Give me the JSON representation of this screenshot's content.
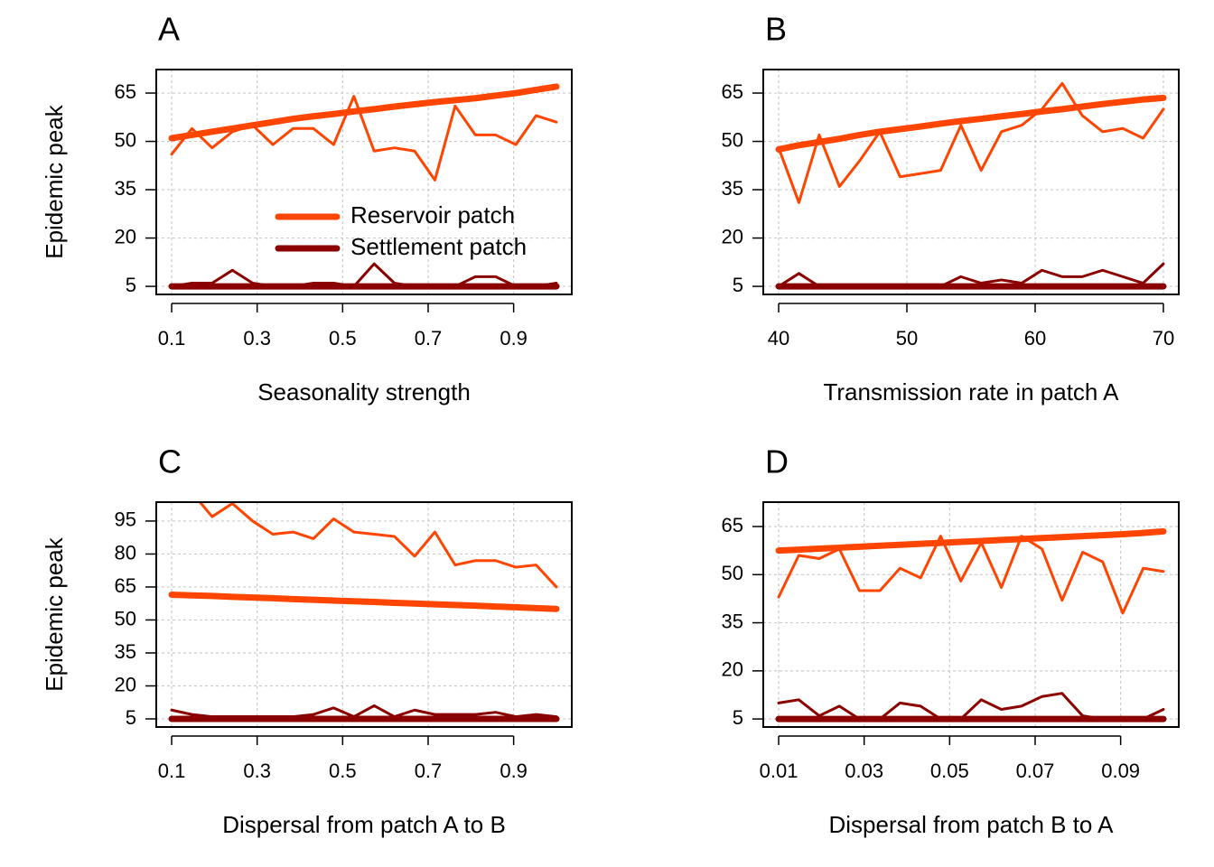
{
  "chart_data": [
    {
      "type": "line",
      "title": "A",
      "xlabel": "Seasonality strength",
      "ylabel": "Epidemic peak",
      "x": [
        0.1,
        0.1474,
        0.1947,
        0.2421,
        0.2895,
        0.3368,
        0.3842,
        0.4316,
        0.4789,
        0.5263,
        0.5737,
        0.6211,
        0.6684,
        0.7158,
        0.7632,
        0.8105,
        0.8579,
        0.9053,
        0.9526,
        1.0
      ],
      "series": [
        {
          "color": "#ff4500",
          "linewidth": 3,
          "values": [
            46,
            54,
            48,
            53,
            55,
            49,
            54,
            54,
            49,
            64,
            47,
            48,
            47,
            38,
            61,
            52,
            52,
            49,
            58,
            56
          ]
        },
        {
          "color": "#8b0000",
          "linewidth": 3,
          "values": [
            5,
            6,
            6,
            10,
            6,
            5,
            5,
            6,
            6,
            5,
            12,
            6,
            5,
            5,
            5,
            8,
            8,
            5,
            5,
            6
          ]
        },
        {
          "name": "Reservoir patch",
          "color": "#ff4500",
          "linewidth": 7,
          "values": [
            51,
            52,
            53,
            54,
            55,
            56,
            57,
            57.8,
            58.5,
            59.3,
            60,
            60.8,
            61.5,
            62.2,
            62.8,
            63.4,
            64.2,
            65,
            66,
            67
          ]
        },
        {
          "name": "Settlement patch",
          "color": "#8b0000",
          "linewidth": 7,
          "values": [
            5,
            5,
            5,
            5,
            5,
            5,
            5,
            5,
            5,
            5,
            5,
            5,
            5,
            5,
            5,
            5,
            5,
            5,
            5,
            5
          ]
        }
      ],
      "xlim": [
        0.064,
        1.036
      ],
      "ylim": [
        2.5,
        72.3
      ],
      "xticks": [
        0.1,
        0.3,
        0.5,
        0.7,
        0.9
      ],
      "yticks": [
        5,
        20,
        35,
        50,
        65
      ],
      "grid": true,
      "legend": "right"
    },
    {
      "type": "line",
      "title": "B",
      "xlabel": "Transmission rate in patch A",
      "x": [
        40,
        41.58,
        43.16,
        44.74,
        46.32,
        47.89,
        49.47,
        51.05,
        52.63,
        54.21,
        55.79,
        57.37,
        58.95,
        60.53,
        62.11,
        63.68,
        65.26,
        66.84,
        68.42,
        70
      ],
      "series": [
        {
          "color": "#ff4500",
          "linewidth": 3,
          "values": [
            48,
            31,
            52,
            36,
            44,
            53,
            39,
            40,
            41,
            55,
            41,
            53,
            55,
            60,
            68,
            58,
            53,
            54,
            51,
            60
          ]
        },
        {
          "color": "#8b0000",
          "linewidth": 3,
          "values": [
            5,
            9,
            5,
            5,
            5,
            5,
            5,
            5,
            5,
            8,
            6,
            7,
            6,
            10,
            8,
            8,
            10,
            8,
            6,
            12
          ]
        },
        {
          "color": "#ff4500",
          "linewidth": 7,
          "values": [
            47.5,
            48.8,
            49.8,
            50.8,
            52,
            53,
            53.8,
            54.6,
            55.5,
            56.3,
            57,
            57.8,
            58.5,
            59.3,
            60,
            60.8,
            61.6,
            62.3,
            63,
            63.5
          ]
        },
        {
          "color": "#8b0000",
          "linewidth": 7,
          "values": [
            5,
            5,
            5,
            5,
            5,
            5,
            5,
            5,
            5,
            5,
            5,
            5,
            5,
            5,
            5,
            5,
            5,
            5,
            5,
            5
          ]
        }
      ],
      "xlim": [
        38.8,
        71.2
      ],
      "ylim": [
        2.5,
        72.3
      ],
      "xticks": [
        40,
        50,
        60,
        70
      ],
      "yticks": [
        5,
        20,
        35,
        50,
        65
      ],
      "grid": true
    },
    {
      "type": "line",
      "title": "C",
      "xlabel": "Dispersal from patch A to B",
      "ylabel": "Epidemic peak",
      "x": [
        0.1,
        0.1474,
        0.1947,
        0.2421,
        0.2895,
        0.3368,
        0.3842,
        0.4316,
        0.4789,
        0.5263,
        0.5737,
        0.6211,
        0.6684,
        0.7158,
        0.7632,
        0.8105,
        0.8579,
        0.9053,
        0.9526,
        1.0
      ],
      "series": [
        {
          "color": "#ff4500",
          "linewidth": 3,
          "values": [
            112,
            108,
            97,
            103,
            95,
            89,
            90,
            87,
            96,
            90,
            89,
            88,
            79,
            90,
            75,
            77,
            77,
            74,
            75,
            65
          ]
        },
        {
          "color": "#8b0000",
          "linewidth": 3,
          "values": [
            9,
            7,
            6,
            6,
            6,
            6,
            6,
            7,
            10,
            6,
            11,
            6,
            9,
            7,
            7,
            7,
            8,
            6,
            7,
            6
          ]
        },
        {
          "color": "#ff4500",
          "linewidth": 7,
          "values": [
            61.5,
            61.2,
            60.9,
            60.5,
            60.2,
            59.9,
            59.5,
            59.2,
            58.8,
            58.5,
            58.2,
            57.8,
            57.5,
            57.1,
            56.8,
            56.5,
            56.1,
            55.8,
            55.4,
            55
          ]
        },
        {
          "color": "#8b0000",
          "linewidth": 7,
          "values": [
            5,
            5,
            5,
            5,
            5,
            5,
            5,
            5,
            5,
            5,
            5,
            5,
            5,
            5,
            5,
            5,
            5,
            5,
            5,
            5
          ]
        }
      ],
      "xlim": [
        0.064,
        1.036
      ],
      "ylim": [
        1.3,
        103.6
      ],
      "xticks": [
        0.1,
        0.3,
        0.5,
        0.7,
        0.9
      ],
      "yticks": [
        5,
        20,
        35,
        50,
        65,
        80,
        95
      ],
      "grid": true
    },
    {
      "type": "line",
      "title": "D",
      "xlabel": "Dispersal from patch B to A",
      "x": [
        0.01,
        0.0147,
        0.0195,
        0.0242,
        0.0289,
        0.0337,
        0.0384,
        0.0432,
        0.0479,
        0.0526,
        0.0574,
        0.0621,
        0.0668,
        0.0716,
        0.0763,
        0.0811,
        0.0858,
        0.0905,
        0.0953,
        0.1
      ],
      "series": [
        {
          "color": "#ff4500",
          "linewidth": 3,
          "values": [
            43,
            56,
            55,
            58,
            45,
            45,
            52,
            49,
            62,
            48,
            60,
            46,
            62,
            58,
            42,
            57,
            54,
            38,
            52,
            51
          ]
        },
        {
          "color": "#8b0000",
          "linewidth": 3,
          "values": [
            10,
            11,
            6,
            9,
            5,
            5,
            10,
            9,
            5,
            5,
            11,
            8,
            9,
            12,
            13,
            6,
            5,
            5,
            5,
            8
          ]
        },
        {
          "color": "#ff4500",
          "linewidth": 7,
          "values": [
            57.5,
            57.8,
            58.1,
            58.4,
            58.7,
            59,
            59.3,
            59.6,
            59.9,
            60.2,
            60.5,
            60.8,
            61.1,
            61.4,
            61.7,
            62,
            62.3,
            62.6,
            63,
            63.5
          ]
        },
        {
          "color": "#8b0000",
          "linewidth": 7,
          "values": [
            5,
            5,
            5,
            5,
            5,
            5,
            5,
            5,
            5,
            5,
            5,
            5,
            5,
            5,
            5,
            5,
            5,
            5,
            5,
            5
          ]
        }
      ],
      "xlim": [
        0.0064,
        0.1036
      ],
      "ylim": [
        2.5,
        72.6
      ],
      "xticks": [
        0.01,
        0.03,
        0.05,
        0.07,
        0.09
      ],
      "yticks": [
        5,
        20,
        35,
        50,
        65
      ],
      "grid": true
    }
  ]
}
